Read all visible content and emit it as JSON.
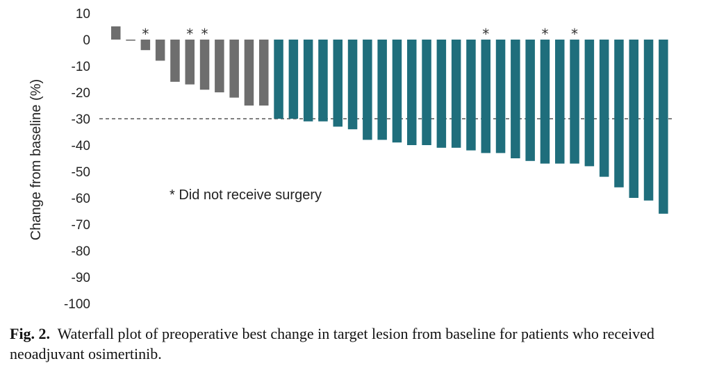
{
  "chart_data": {
    "type": "bar",
    "ylabel": "Change from baseline (%)",
    "ylim": [
      -100,
      10
    ],
    "yticks": [
      10,
      0,
      -10,
      -20,
      -30,
      -40,
      -50,
      -60,
      -70,
      -80,
      -90,
      -100
    ],
    "reference_line": -30,
    "annotation": "* Did not receive surgery",
    "colors": {
      "grey": "#6e6e6e",
      "teal": "#1f6e7c",
      "reference": "#333333"
    },
    "bars": [
      {
        "value": 5,
        "color": "grey",
        "star": false
      },
      {
        "value": 0,
        "color": "grey",
        "star": false
      },
      {
        "value": -4,
        "color": "grey",
        "star": true
      },
      {
        "value": -8,
        "color": "grey",
        "star": false
      },
      {
        "value": -16,
        "color": "grey",
        "star": false
      },
      {
        "value": -17,
        "color": "grey",
        "star": true
      },
      {
        "value": -19,
        "color": "grey",
        "star": true
      },
      {
        "value": -20,
        "color": "grey",
        "star": false
      },
      {
        "value": -22,
        "color": "grey",
        "star": false
      },
      {
        "value": -25,
        "color": "grey",
        "star": false
      },
      {
        "value": -25,
        "color": "grey",
        "star": false
      },
      {
        "value": -30,
        "color": "teal",
        "star": false
      },
      {
        "value": -30,
        "color": "teal",
        "star": false
      },
      {
        "value": -31,
        "color": "teal",
        "star": false
      },
      {
        "value": -31,
        "color": "teal",
        "star": false
      },
      {
        "value": -33,
        "color": "teal",
        "star": false
      },
      {
        "value": -34,
        "color": "teal",
        "star": false
      },
      {
        "value": -38,
        "color": "teal",
        "star": false
      },
      {
        "value": -38,
        "color": "teal",
        "star": false
      },
      {
        "value": -39,
        "color": "teal",
        "star": false
      },
      {
        "value": -40,
        "color": "teal",
        "star": false
      },
      {
        "value": -40,
        "color": "teal",
        "star": false
      },
      {
        "value": -41,
        "color": "teal",
        "star": false
      },
      {
        "value": -41,
        "color": "teal",
        "star": false
      },
      {
        "value": -42,
        "color": "teal",
        "star": false
      },
      {
        "value": -43,
        "color": "teal",
        "star": true
      },
      {
        "value": -43,
        "color": "teal",
        "star": false
      },
      {
        "value": -45,
        "color": "teal",
        "star": false
      },
      {
        "value": -46,
        "color": "teal",
        "star": false
      },
      {
        "value": -47,
        "color": "teal",
        "star": true
      },
      {
        "value": -47,
        "color": "teal",
        "star": false
      },
      {
        "value": -47,
        "color": "teal",
        "star": true
      },
      {
        "value": -48,
        "color": "teal",
        "star": false
      },
      {
        "value": -52,
        "color": "teal",
        "star": false
      },
      {
        "value": -56,
        "color": "teal",
        "star": false
      },
      {
        "value": -60,
        "color": "teal",
        "star": false
      },
      {
        "value": -61,
        "color": "teal",
        "star": false
      },
      {
        "value": -66,
        "color": "teal",
        "star": false
      }
    ]
  },
  "caption": {
    "label": "Fig. 2.",
    "text": "Waterfall plot of preoperative best change in target lesion from baseline for patients who received neoadjuvant osimertinib."
  }
}
